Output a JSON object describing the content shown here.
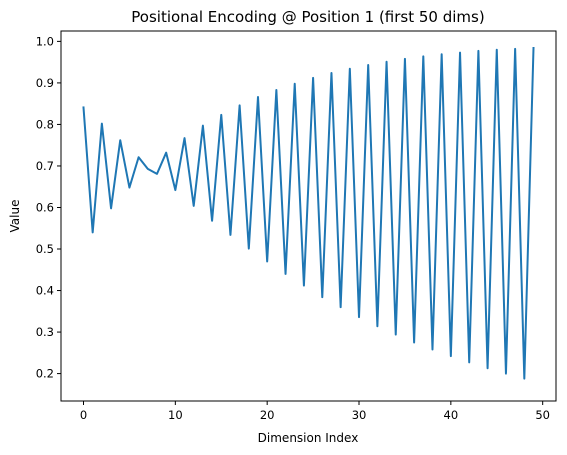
{
  "chart_data": {
    "type": "line",
    "title": "Positional Encoding @ Position 1 (first 50 dims)",
    "xlabel": "Dimension Index",
    "ylabel": "Value",
    "xlim": [
      -2.45,
      51.45
    ],
    "ylim": [
      0.134,
      1.025
    ],
    "grid": false,
    "legend": "none",
    "line_color": "#1f77b4",
    "x_ticks": [
      {
        "value": 0,
        "label": "0"
      },
      {
        "value": 10,
        "label": "10"
      },
      {
        "value": 20,
        "label": "20"
      },
      {
        "value": 30,
        "label": "30"
      },
      {
        "value": 40,
        "label": "40"
      },
      {
        "value": 50,
        "label": "50"
      }
    ],
    "y_ticks": [
      {
        "value": 0.2,
        "label": "0.2"
      },
      {
        "value": 0.3,
        "label": "0.3"
      },
      {
        "value": 0.4,
        "label": "0.4"
      },
      {
        "value": 0.5,
        "label": "0.5"
      },
      {
        "value": 0.6,
        "label": "0.6"
      },
      {
        "value": 0.7,
        "label": "0.7"
      },
      {
        "value": 0.8,
        "label": "0.8"
      },
      {
        "value": 0.9,
        "label": "0.9"
      },
      {
        "value": 1.0,
        "label": "1.0"
      }
    ],
    "series": [
      {
        "x": [
          0,
          1,
          2,
          3,
          4,
          5,
          6,
          7,
          8,
          9,
          10,
          11,
          12,
          13,
          14,
          15,
          16,
          17,
          18,
          19,
          20,
          21,
          22,
          23,
          24,
          25,
          26,
          27,
          28,
          29,
          30,
          31,
          32,
          33,
          34,
          35,
          36,
          37,
          38,
          39,
          40,
          41,
          42,
          43,
          44,
          45,
          46,
          47,
          48,
          49
        ],
        "values": [
          0.841,
          0.54,
          0.802,
          0.598,
          0.762,
          0.648,
          0.721,
          0.693,
          0.681,
          0.732,
          0.642,
          0.767,
          0.604,
          0.797,
          0.568,
          0.823,
          0.534,
          0.846,
          0.501,
          0.866,
          0.47,
          0.883,
          0.44,
          0.898,
          0.412,
          0.912,
          0.384,
          0.924,
          0.36,
          0.934,
          0.336,
          0.943,
          0.314,
          0.951,
          0.294,
          0.958,
          0.275,
          0.964,
          0.258,
          0.969,
          0.242,
          0.973,
          0.227,
          0.977,
          0.213,
          0.98,
          0.2,
          0.982,
          0.188,
          0.984
        ]
      }
    ]
  }
}
